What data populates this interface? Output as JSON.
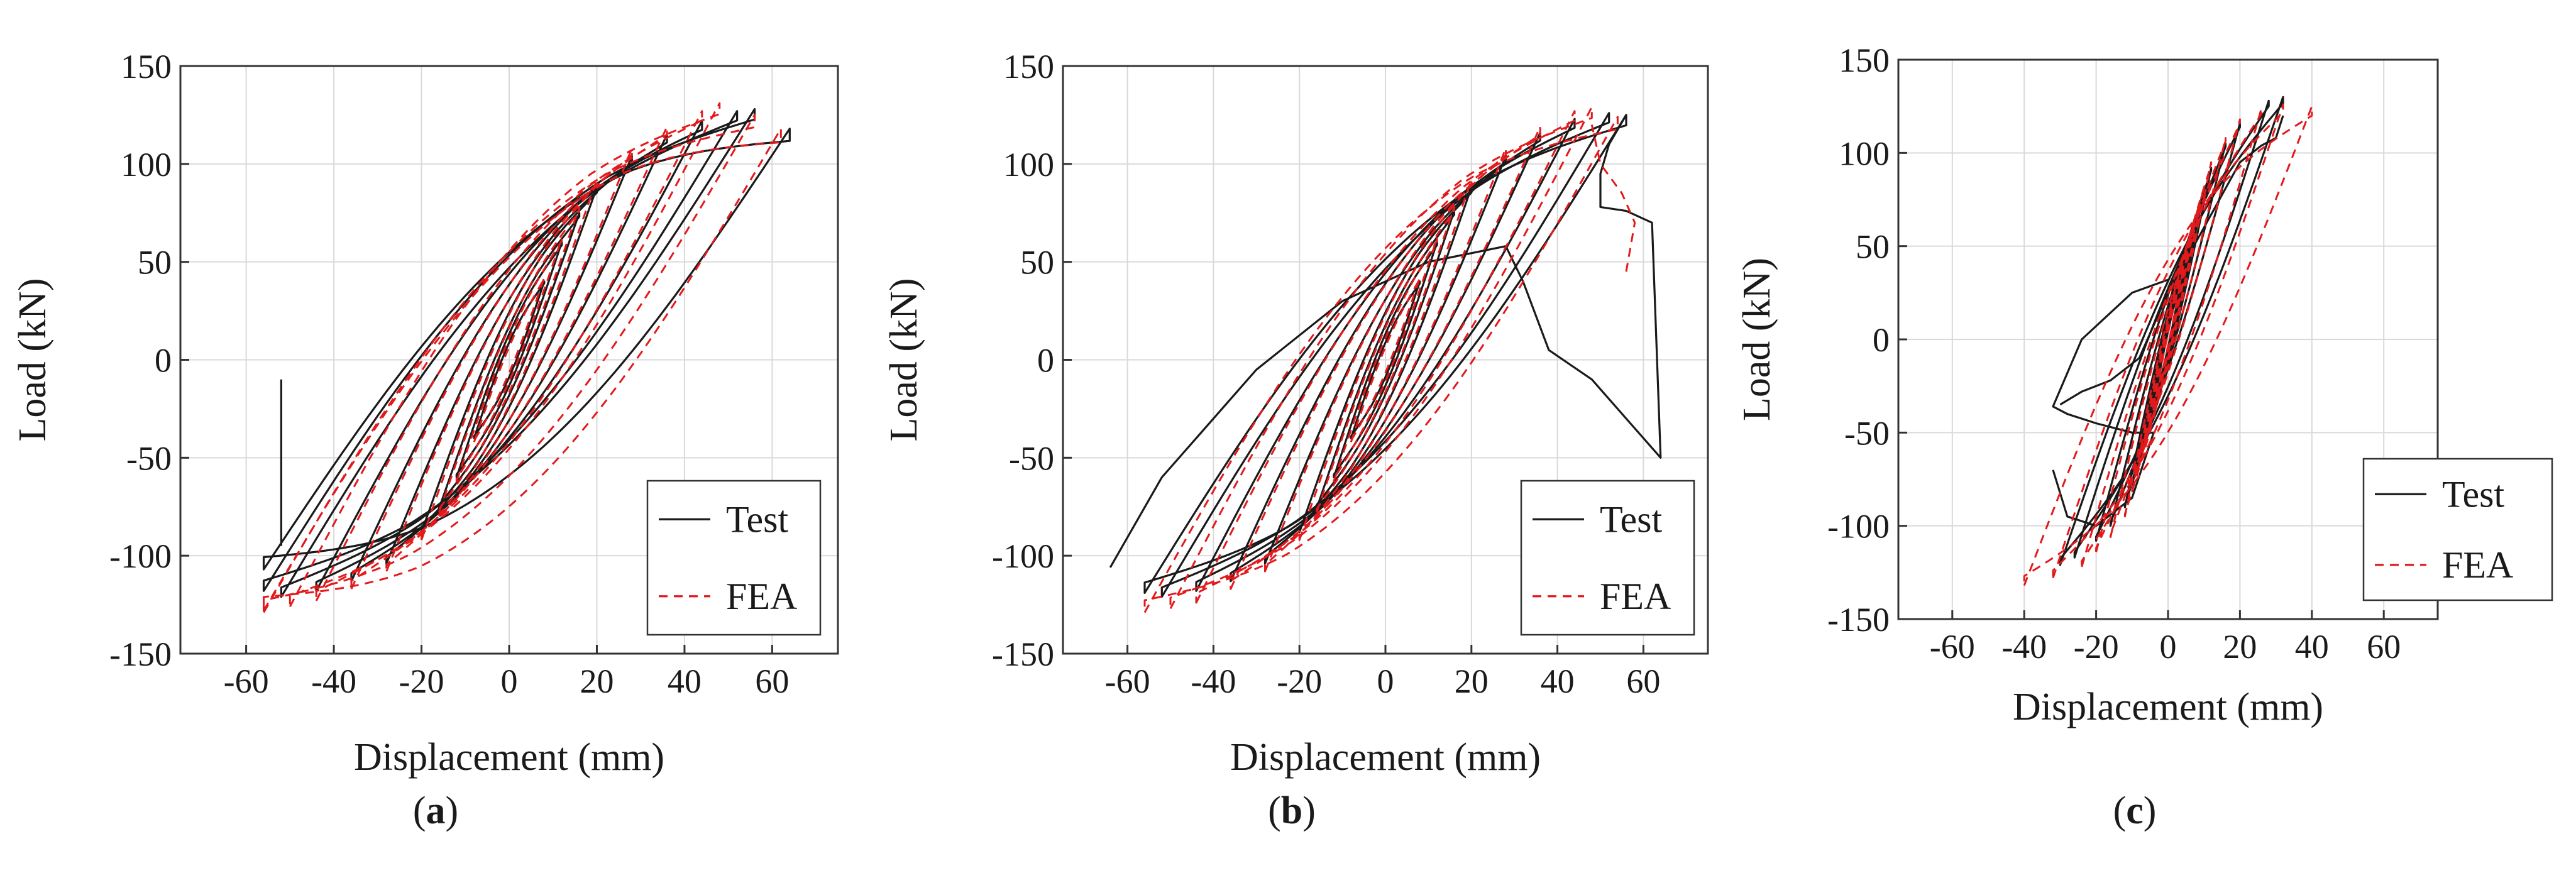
{
  "chart_data": [
    {
      "id": "a",
      "type": "line",
      "caption_letter": "a",
      "xlabel": "Displacement (mm)",
      "ylabel": "Load (kN)",
      "xlim": [
        -75,
        75
      ],
      "ylim": [
        -150,
        150
      ],
      "xticks": [
        -60,
        -40,
        -20,
        0,
        20,
        40,
        60
      ],
      "yticks": [
        150,
        100,
        50,
        0,
        -50,
        -100,
        -150
      ],
      "grid": true,
      "legend_position": "bottom-right",
      "series": [
        {
          "name": "Test",
          "style": "solid",
          "color": "#1a1a1a",
          "initial_path": [
            [
              -52,
              -10
            ],
            [
              -52,
              -60
            ],
            [
              -52,
              -95
            ]
          ],
          "cycles": [
            {
              "x_max": 8,
              "x_min": -8,
              "y_max": 40,
              "y_min": -40,
              "width": 8
            },
            {
              "x_max": 12,
              "x_min": -12,
              "y_max": 60,
              "y_min": -60,
              "width": 12
            },
            {
              "x_max": 16,
              "x_min": -16,
              "y_max": 75,
              "y_min": -76,
              "width": 16
            },
            {
              "x_max": 20,
              "x_min": -20,
              "y_max": 88,
              "y_min": -88,
              "width": 22
            },
            {
              "x_max": 28,
              "x_min": -28,
              "y_max": 104,
              "y_min": -104,
              "width": 28
            },
            {
              "x_max": 36,
              "x_min": -36,
              "y_max": 115,
              "y_min": -113,
              "width": 34
            },
            {
              "x_max": 44,
              "x_min": -44,
              "y_max": 122,
              "y_min": -118,
              "width": 38
            },
            {
              "x_max": 52,
              "x_min": -52,
              "y_max": 127,
              "y_min": -121,
              "width": 40
            },
            {
              "x_max": 56,
              "x_min": -56,
              "y_max": 128,
              "y_min": -118,
              "width": 44
            },
            {
              "x_max": 64,
              "x_min": -56,
              "y_max": 118,
              "y_min": -107,
              "width": 52
            }
          ]
        },
        {
          "name": "FEA",
          "style": "dashed",
          "color": "#e31a1c",
          "cycles": [
            {
              "x_max": 8,
              "x_min": -8,
              "y_max": 42,
              "y_min": -42,
              "width": 6
            },
            {
              "x_max": 12,
              "x_min": -12,
              "y_max": 62,
              "y_min": -62,
              "width": 10
            },
            {
              "x_max": 16,
              "x_min": -16,
              "y_max": 78,
              "y_min": -78,
              "width": 15
            },
            {
              "x_max": 20,
              "x_min": -20,
              "y_max": 92,
              "y_min": -92,
              "width": 21
            },
            {
              "x_max": 28,
              "x_min": -28,
              "y_max": 108,
              "y_min": -108,
              "width": 28
            },
            {
              "x_max": 36,
              "x_min": -36,
              "y_max": 119,
              "y_min": -117,
              "width": 34
            },
            {
              "x_max": 44,
              "x_min": -44,
              "y_max": 127,
              "y_min": -123,
              "width": 40
            },
            {
              "x_max": 48,
              "x_min": -50,
              "y_max": 131,
              "y_min": -126,
              "width": 46
            },
            {
              "x_max": 56,
              "x_min": -56,
              "y_max": 125,
              "y_min": -129,
              "width": 52
            },
            {
              "x_max": 62,
              "x_min": -56,
              "y_max": 118,
              "y_min": -128,
              "width": 58
            }
          ]
        }
      ]
    },
    {
      "id": "b",
      "type": "line",
      "caption_letter": "b",
      "xlabel": "Displacement (mm)",
      "ylabel": "Load (kN)",
      "xlim": [
        -75,
        75
      ],
      "ylim": [
        -150,
        150
      ],
      "xticks": [
        -60,
        -40,
        -20,
        0,
        20,
        40,
        60
      ],
      "yticks": [
        150,
        100,
        50,
        0,
        -50,
        -100,
        -150
      ],
      "grid": true,
      "legend_position": "bottom-right",
      "series": [
        {
          "name": "Test",
          "style": "solid",
          "color": "#1a1a1a",
          "extra_paths": [
            [
              [
                -64,
                -106
              ],
              [
                -52,
                -60
              ],
              [
                -30,
                -5
              ],
              [
                -10,
                30
              ],
              [
                10,
                50
              ],
              [
                28,
                58
              ],
              [
                32,
                40
              ],
              [
                38,
                5
              ],
              [
                48,
                -10
              ],
              [
                56,
                -30
              ],
              [
                64,
                -50
              ],
              [
                62,
                70
              ],
              [
                56,
                76
              ],
              [
                50,
                78
              ],
              [
                50,
                95
              ],
              [
                52,
                110
              ],
              [
                56,
                125
              ]
            ]
          ],
          "cycles": [
            {
              "x_max": 8,
              "x_min": -8,
              "y_max": 40,
              "y_min": -40,
              "width": 8
            },
            {
              "x_max": 12,
              "x_min": -12,
              "y_max": 60,
              "y_min": -60,
              "width": 12
            },
            {
              "x_max": 16,
              "x_min": -16,
              "y_max": 76,
              "y_min": -76,
              "width": 16
            },
            {
              "x_max": 20,
              "x_min": -20,
              "y_max": 88,
              "y_min": -88,
              "width": 22
            },
            {
              "x_max": 28,
              "x_min": -28,
              "y_max": 104,
              "y_min": -104,
              "width": 28
            },
            {
              "x_max": 36,
              "x_min": -36,
              "y_max": 116,
              "y_min": -113,
              "width": 34
            },
            {
              "x_max": 44,
              "x_min": -44,
              "y_max": 123,
              "y_min": -118,
              "width": 38
            },
            {
              "x_max": 52,
              "x_min": -52,
              "y_max": 126,
              "y_min": -121,
              "width": 40
            },
            {
              "x_max": 56,
              "x_min": -56,
              "y_max": 125,
              "y_min": -119,
              "width": 44
            }
          ]
        },
        {
          "name": "FEA",
          "style": "dashed",
          "color": "#e31a1c",
          "extra_paths": [
            [
              [
                56,
                45
              ],
              [
                58,
                70
              ],
              [
                55,
                85
              ],
              [
                50,
                100
              ],
              [
                48,
                120
              ]
            ]
          ],
          "cycles": [
            {
              "x_max": 8,
              "x_min": -8,
              "y_max": 42,
              "y_min": -42,
              "width": 6
            },
            {
              "x_max": 12,
              "x_min": -12,
              "y_max": 62,
              "y_min": -62,
              "width": 10
            },
            {
              "x_max": 16,
              "x_min": -16,
              "y_max": 78,
              "y_min": -78,
              "width": 15
            },
            {
              "x_max": 20,
              "x_min": -20,
              "y_max": 92,
              "y_min": -92,
              "width": 21
            },
            {
              "x_max": 28,
              "x_min": -28,
              "y_max": 108,
              "y_min": -108,
              "width": 28
            },
            {
              "x_max": 36,
              "x_min": -36,
              "y_max": 119,
              "y_min": -117,
              "width": 34
            },
            {
              "x_max": 44,
              "x_min": -44,
              "y_max": 127,
              "y_min": -124,
              "width": 40
            },
            {
              "x_max": 48,
              "x_min": -50,
              "y_max": 129,
              "y_min": -127,
              "width": 46
            },
            {
              "x_max": 54,
              "x_min": -56,
              "y_max": 124,
              "y_min": -129,
              "width": 52
            }
          ]
        }
      ]
    },
    {
      "id": "c",
      "type": "line",
      "caption_letter": "c",
      "xlabel": "Displacement (mm)",
      "ylabel": "Load (kN)",
      "xlim": [
        -75,
        75
      ],
      "ylim": [
        -150,
        150
      ],
      "xticks": [
        -60,
        -40,
        -20,
        0,
        20,
        40,
        60
      ],
      "yticks": [
        150,
        100,
        50,
        0,
        -50,
        -100,
        -150
      ],
      "grid": true,
      "legend_position": "bottom-right",
      "series": [
        {
          "name": "Test",
          "style": "solid",
          "color": "#1a1a1a",
          "extra_paths": [
            [
              [
                -30,
                -35
              ],
              [
                -24,
                -28
              ],
              [
                -16,
                -22
              ],
              [
                -8,
                -10
              ],
              [
                0,
                25
              ],
              [
                10,
                60
              ],
              [
                20,
                95
              ],
              [
                26,
                104
              ],
              [
                30,
                108
              ],
              [
                32,
                120
              ]
            ],
            [
              [
                -32,
                -70
              ],
              [
                -28,
                -95
              ],
              [
                -20,
                -100
              ],
              [
                -10,
                -85
              ],
              [
                -4,
                -50
              ],
              [
                -10,
                -50
              ],
              [
                -20,
                -45
              ],
              [
                -28,
                -40
              ],
              [
                -32,
                -36
              ],
              [
                -24,
                0
              ],
              [
                -10,
                25
              ],
              [
                0,
                32
              ]
            ]
          ],
          "cycles": [
            {
              "x_max": 4,
              "x_min": -4,
              "y_max": 35,
              "y_min": -35,
              "width": 4
            },
            {
              "x_max": 6,
              "x_min": -6,
              "y_max": 50,
              "y_min": -50,
              "width": 6
            },
            {
              "x_max": 8,
              "x_min": -8,
              "y_max": 65,
              "y_min": -65,
              "width": 8
            },
            {
              "x_max": 10,
              "x_min": -10,
              "y_max": 80,
              "y_min": -78,
              "width": 10
            },
            {
              "x_max": 12,
              "x_min": -12,
              "y_max": 92,
              "y_min": -90,
              "width": 12
            },
            {
              "x_max": 16,
              "x_min": -16,
              "y_max": 105,
              "y_min": -100,
              "width": 14
            },
            {
              "x_max": 20,
              "x_min": -20,
              "y_max": 116,
              "y_min": -108,
              "width": 18
            },
            {
              "x_max": 28,
              "x_min": -26,
              "y_max": 128,
              "y_min": -117,
              "width": 24
            },
            {
              "x_max": 32,
              "x_min": -30,
              "y_max": 130,
              "y_min": -121,
              "width": 28
            }
          ]
        },
        {
          "name": "FEA",
          "style": "dashed",
          "color": "#e31a1c",
          "cycles": [
            {
              "x_max": 4,
              "x_min": -4,
              "y_max": 36,
              "y_min": -36,
              "width": 3
            },
            {
              "x_max": 6,
              "x_min": -6,
              "y_max": 52,
              "y_min": -52,
              "width": 5
            },
            {
              "x_max": 8,
              "x_min": -8,
              "y_max": 68,
              "y_min": -68,
              "width": 7
            },
            {
              "x_max": 10,
              "x_min": -10,
              "y_max": 82,
              "y_min": -82,
              "width": 9
            },
            {
              "x_max": 12,
              "x_min": -12,
              "y_max": 95,
              "y_min": -95,
              "width": 11
            },
            {
              "x_max": 16,
              "x_min": -16,
              "y_max": 108,
              "y_min": -106,
              "width": 14
            },
            {
              "x_max": 20,
              "x_min": -20,
              "y_max": 118,
              "y_min": -114,
              "width": 18
            },
            {
              "x_max": 26,
              "x_min": -24,
              "y_max": 124,
              "y_min": -122,
              "width": 26
            },
            {
              "x_max": 32,
              "x_min": -32,
              "y_max": 126,
              "y_min": -128,
              "width": 34
            },
            {
              "x_max": 40,
              "x_min": -40,
              "y_max": 125,
              "y_min": -132,
              "width": 42
            }
          ]
        }
      ]
    }
  ]
}
